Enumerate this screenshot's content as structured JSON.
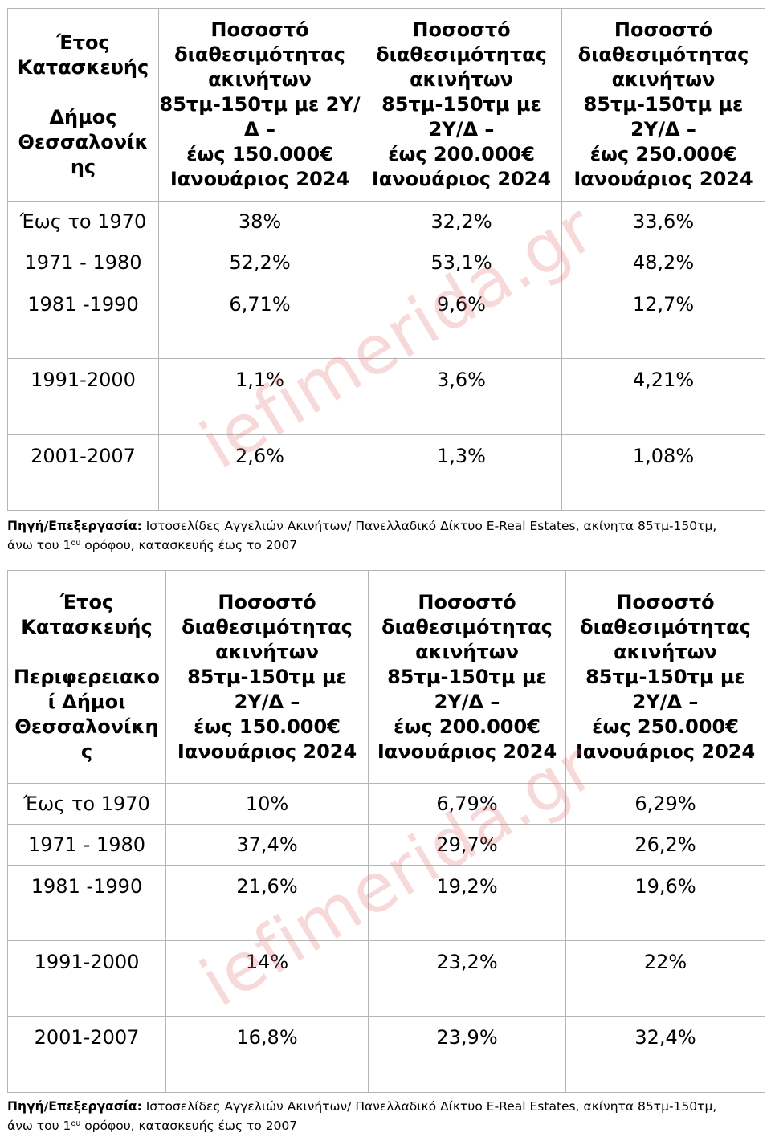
{
  "tables": [
    {
      "year_header": "Έτος\nΚατασκευής\n\nΔήμος\nΘεσσαλονίκ\nης",
      "col_headers": [
        "Ποσοστό\nδιαθεσιμότητας\nακινήτων\n85τμ-150τμ με 2Υ/\nΔ –\nέως 150.000€\nΙανουάριος 2024",
        "Ποσοστό\nδιαθεσιμότητας\nακινήτων\n85τμ-150τμ με\n2Υ/Δ –\nέως 200.000€\nΙανουάριος 2024",
        "Ποσοστό\nδιαθεσιμότητας\nακινήτων\n85τμ-150τμ με\n2Υ/Δ –\nέως 250.000€\nΙανουάριος 2024"
      ],
      "rows": [
        {
          "period": "Έως το 1970",
          "values": [
            "38%",
            "32,2%",
            "33,6%"
          ]
        },
        {
          "period": "1971 - 1980",
          "values": [
            "52,2%",
            "53,1%",
            "48,2%"
          ]
        },
        {
          "period": "1981 -1990",
          "values": [
            "6,71%",
            "9,6%",
            "12,7%"
          ]
        },
        {
          "period": "1991-2000",
          "values": [
            "1,1%",
            "3,6%",
            "4,21%"
          ]
        },
        {
          "period": "2001-2007",
          "values": [
            "2,6%",
            "1,3%",
            "1,08%"
          ]
        }
      ]
    },
    {
      "year_header": "Έτος\nΚατασκευής\n\nΠεριφερειακο\nί Δήμοι\nΘεσσαλονίκη\nς",
      "col_headers": [
        "Ποσοστό\nδιαθεσιμότητας\nακινήτων\n85τμ-150τμ με\n2Υ/Δ –\nέως 150.000€\nΙανουάριος 2024",
        "Ποσοστό\nδιαθεσιμότητας\nακινήτων\n85τμ-150τμ με\n2Υ/Δ –\nέως 200.000€\nΙανουάριος 2024",
        "Ποσοστό\nδιαθεσιμότητας\nακινήτων\n85τμ-150τμ με\n2Υ/Δ –\nέως 250.000€\nΙανουάριος 2024"
      ],
      "rows": [
        {
          "period": "Έως το 1970",
          "values": [
            "10%",
            "6,79%",
            "6,29%"
          ]
        },
        {
          "period": "1971 - 1980",
          "values": [
            "37,4%",
            "29,7%",
            "26,2%"
          ]
        },
        {
          "period": "1981 -1990",
          "values": [
            "21,6%",
            "19,2%",
            "19,6%"
          ]
        },
        {
          "period": "1991-2000",
          "values": [
            "14%",
            "23,2%",
            "22%"
          ]
        },
        {
          "period": "2001-2007",
          "values": [
            "16,8%",
            "23,9%",
            "32,4%"
          ]
        }
      ]
    }
  ],
  "source_note": {
    "label": "Πηγή/Επεξεργασία:",
    "text": " Ιστοσελίδες Αγγελιών Ακινήτων/ Πανελλαδικό Δίκτυο E-Real Estates, ακίνητα 85τμ-150τμ,",
    "line2_pre": "άνω του 1",
    "line2_sup": "ου",
    "line2_post": " ορόφου, κατασκευής έως το 2007"
  },
  "watermark": "iefimerida.gr",
  "colors": {
    "watermark": "#e67878",
    "border": "#b5b5b5"
  }
}
